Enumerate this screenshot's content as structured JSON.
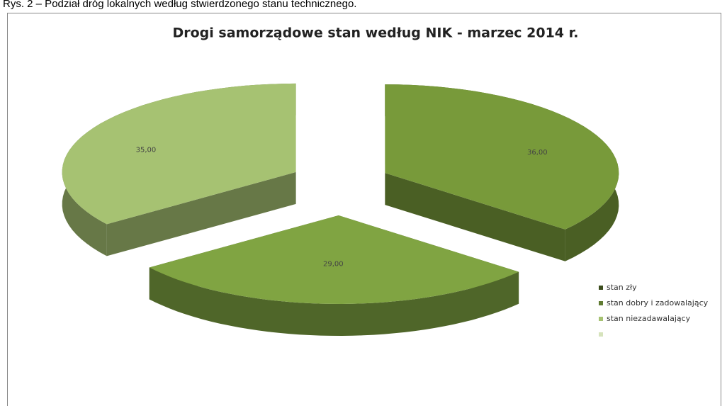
{
  "caption": "Rys. 2 – Podział dróg lokalnych według stwierdzonego stanu technicznego.",
  "chart_data": {
    "type": "pie3d",
    "title": "Drogi samorządowe stan według NIK - marzec 2014 r.",
    "categories": [
      "stan zły",
      "stan dobry i zadowalający",
      "stan niezadawalający"
    ],
    "values": [
      36,
      29,
      35
    ],
    "value_labels": [
      "36,00",
      "29,00",
      "35,00"
    ],
    "colors": [
      "#789a3a",
      "#80a442",
      "#a6c272"
    ],
    "legend": "right"
  }
}
